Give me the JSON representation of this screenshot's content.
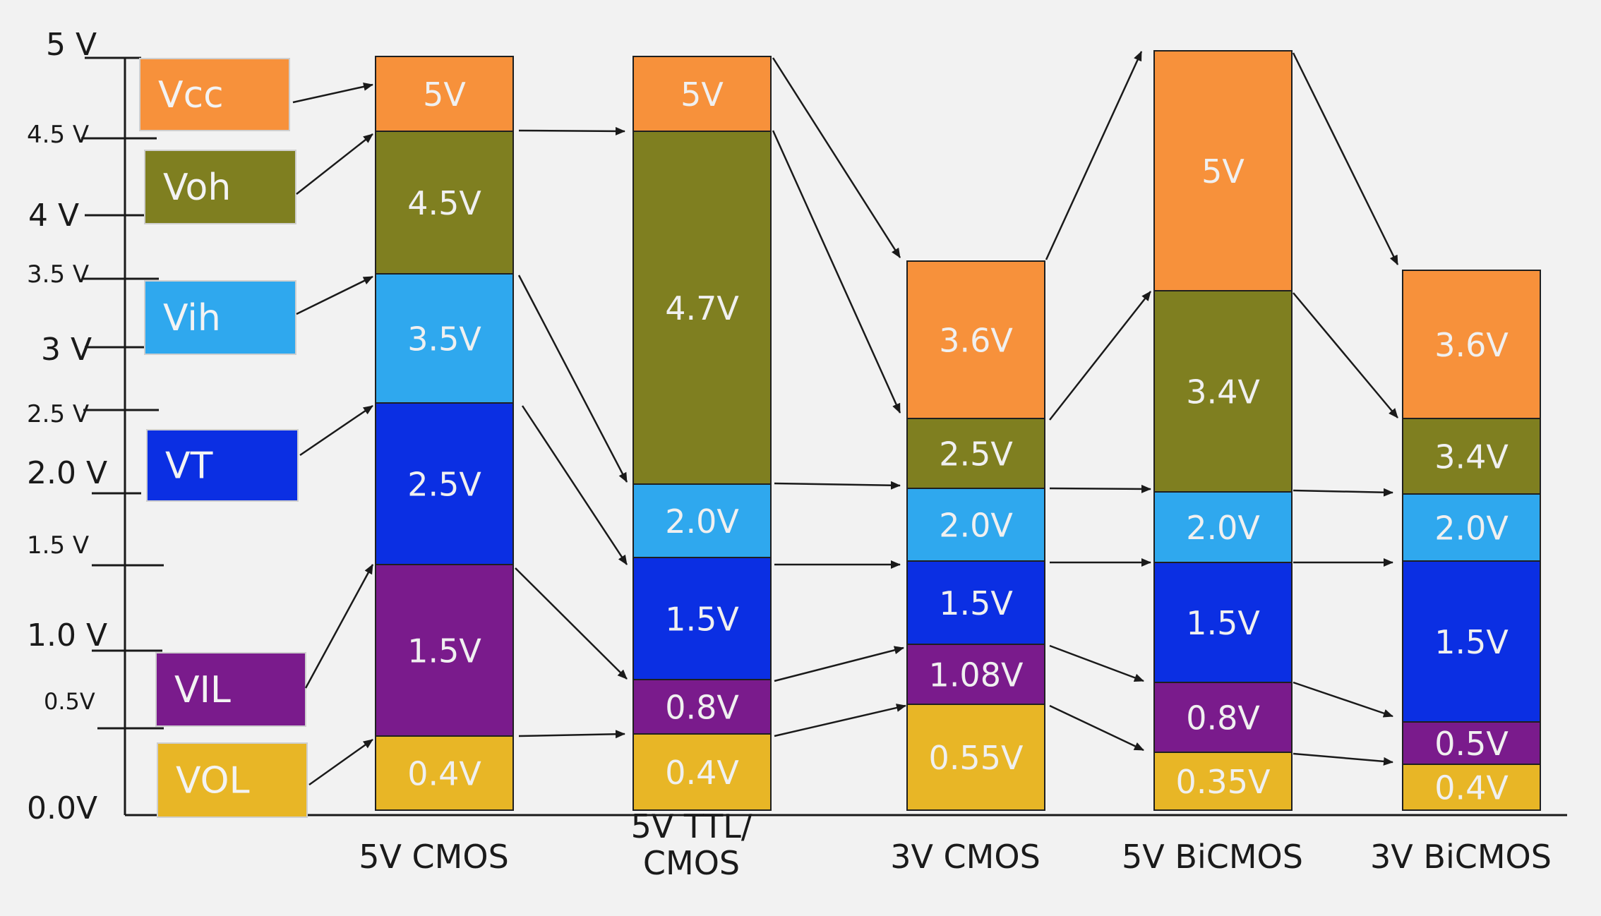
{
  "axis": {
    "ticks": [
      "5 V",
      "4.5 V",
      "4 V",
      "3.5 V",
      "3 V",
      "2.5 V",
      "2.0 V",
      "1.5 V",
      "1.0 V",
      "0.5V",
      "0.0V"
    ]
  },
  "legend": [
    {
      "label": "Vcc",
      "color": "#f7913b"
    },
    {
      "label": "Voh",
      "color": "#7f7f20"
    },
    {
      "label": "Vih",
      "color": "#2fa8ee"
    },
    {
      "label": "VT",
      "color": "#0b2fe3"
    },
    {
      "label": "VIL",
      "color": "#7a1b8c"
    },
    {
      "label": "VOL",
      "color": "#e8b626"
    }
  ],
  "colors": {
    "vcc": "#f7913b",
    "voh": "#7f7f20",
    "vih": "#2fa8ee",
    "vt": "#0b2fe3",
    "vil": "#7a1b8c",
    "vol": "#e8b626",
    "text": "#f0f0f0",
    "label_text": "#1a1a1a",
    "arrow": "#1a1a1a"
  },
  "columns": [
    {
      "name": "5V CMOS",
      "segments": [
        {
          "kind": "vcc",
          "label": "5V"
        },
        {
          "kind": "voh",
          "label": "4.5V"
        },
        {
          "kind": "vih",
          "label": "3.5V"
        },
        {
          "kind": "vt",
          "label": "2.5V"
        },
        {
          "kind": "vil",
          "label": "1.5V"
        },
        {
          "kind": "vol",
          "label": "0.4V"
        }
      ]
    },
    {
      "name": "5V TTL/\nCMOS",
      "name_lines": [
        "5V TTL/",
        "CMOS"
      ],
      "segments": [
        {
          "kind": "vcc",
          "label": "5V"
        },
        {
          "kind": "voh",
          "label": "4.7V"
        },
        {
          "kind": "vih",
          "label": "2.0V"
        },
        {
          "kind": "vt",
          "label": "1.5V"
        },
        {
          "kind": "vil",
          "label": "0.8V"
        },
        {
          "kind": "vol",
          "label": "0.4V"
        }
      ]
    },
    {
      "name": "3V CMOS",
      "segments": [
        {
          "kind": "vcc",
          "label": "3.6V"
        },
        {
          "kind": "voh",
          "label": "2.5V"
        },
        {
          "kind": "vih",
          "label": "2.0V"
        },
        {
          "kind": "vt",
          "label": "1.5V"
        },
        {
          "kind": "vil",
          "label": "1.08V"
        },
        {
          "kind": "vol",
          "label": "0.55V"
        }
      ]
    },
    {
      "name": "5V BiCMOS",
      "segments": [
        {
          "kind": "vcc",
          "label": "5V"
        },
        {
          "kind": "voh",
          "label": "3.4V"
        },
        {
          "kind": "vih",
          "label": "2.0V"
        },
        {
          "kind": "vt",
          "label": "1.5V"
        },
        {
          "kind": "vil",
          "label": "0.8V"
        },
        {
          "kind": "vol",
          "label": "0.35V"
        }
      ]
    },
    {
      "name": "3V BiCMOS",
      "segments": [
        {
          "kind": "vcc",
          "label": "3.6V"
        },
        {
          "kind": "voh",
          "label": "3.4V"
        },
        {
          "kind": "vih",
          "label": "2.0V"
        },
        {
          "kind": "vt",
          "label": "1.5V"
        },
        {
          "kind": "vil",
          "label": "0.5V"
        },
        {
          "kind": "vol",
          "label": "0.4V"
        }
      ]
    }
  ]
}
